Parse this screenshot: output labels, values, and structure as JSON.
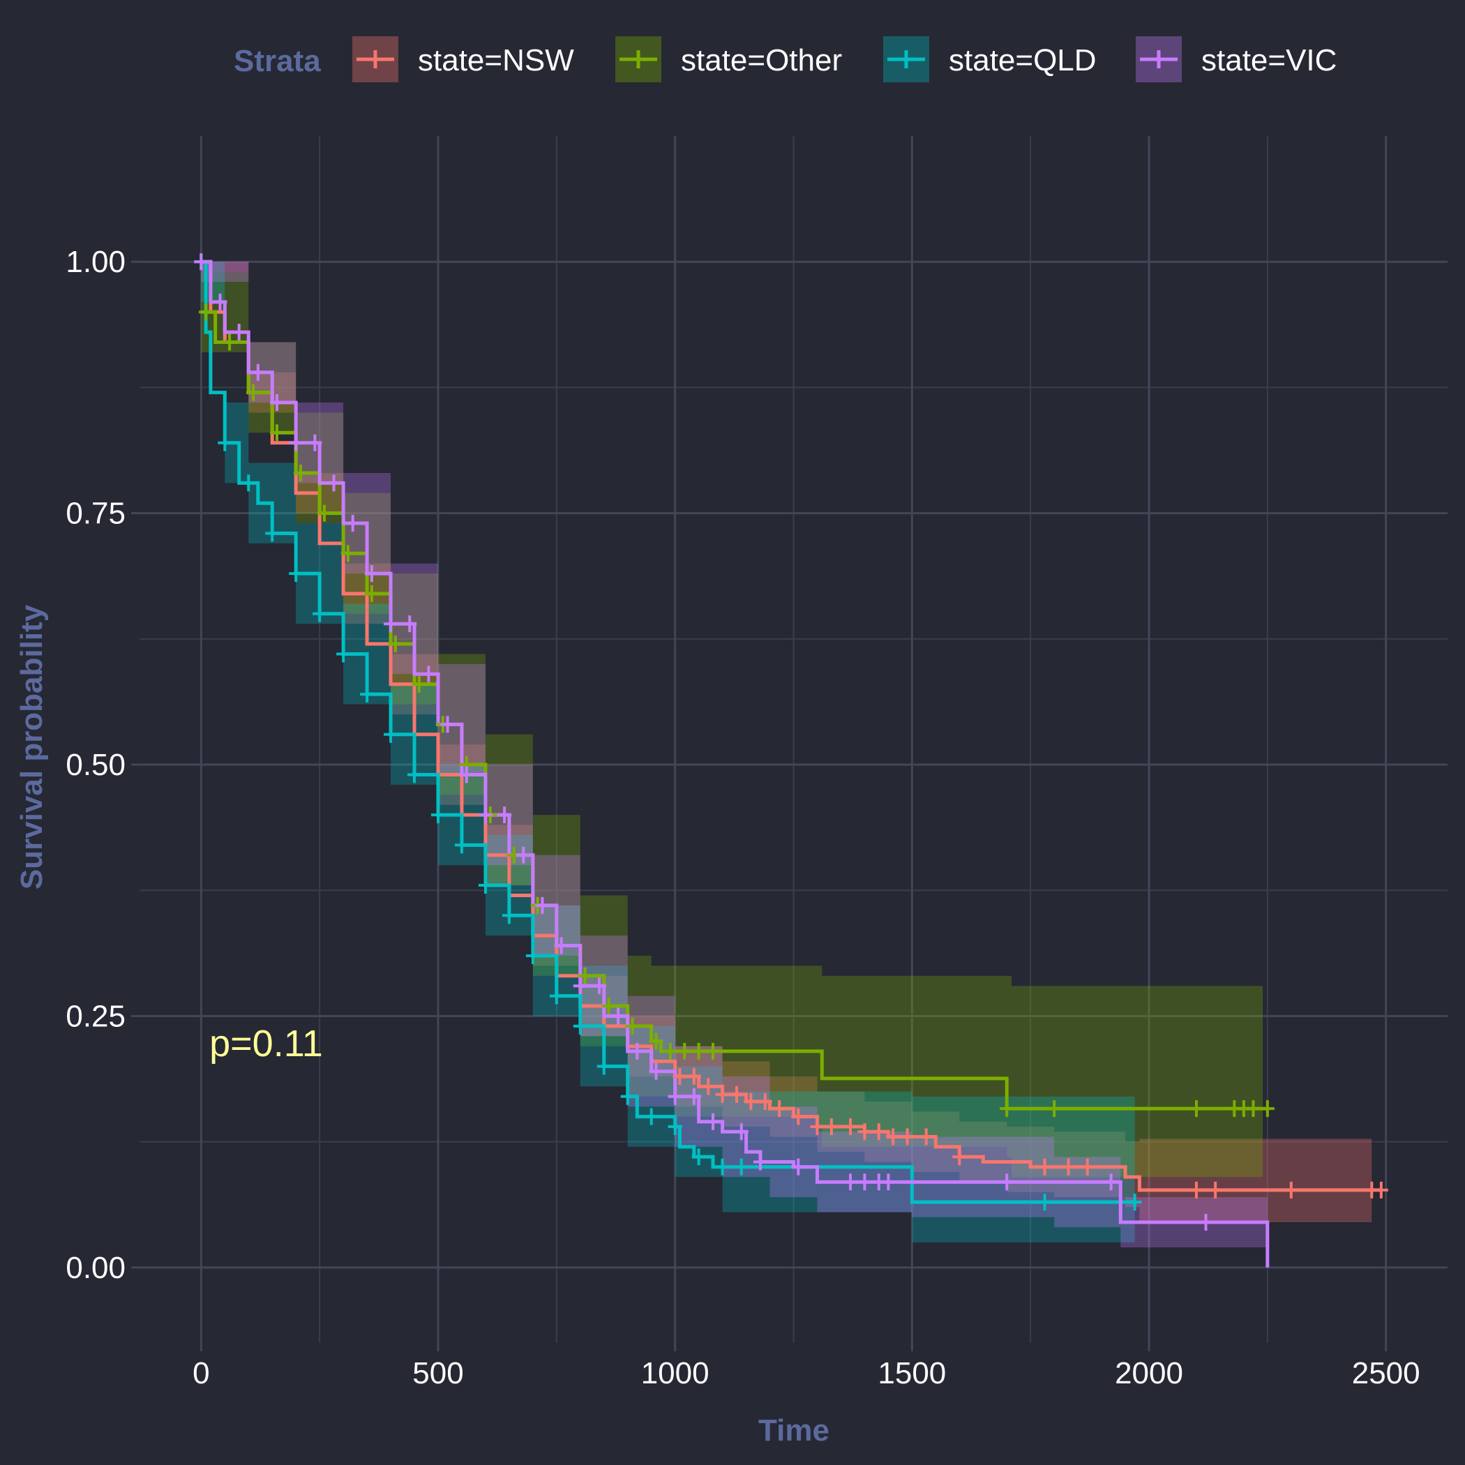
{
  "chart_data": {
    "type": "line",
    "subtype": "kaplan-meier",
    "xlabel": "Time",
    "ylabel": "Survival probability",
    "xlim": [
      -130,
      2630
    ],
    "ylim": [
      -0.075,
      1.125
    ],
    "x_ticks": [
      0,
      500,
      1000,
      1500,
      2000,
      2500
    ],
    "x_tick_labels": [
      "0",
      "500",
      "1000",
      "1500",
      "2000",
      "2500"
    ],
    "y_ticks": [
      0,
      0.25,
      0.5,
      0.75,
      1.0
    ],
    "y_tick_labels": [
      "0.00",
      "0.25",
      "0.50",
      "0.75",
      "1.00"
    ],
    "grid": true,
    "legend_title": "Strata",
    "legend_position": "top",
    "annotation": {
      "text": "p=0.11",
      "x": 10,
      "y": 0.21,
      "color": "#ffff99"
    },
    "series": [
      {
        "name": "state=NSW",
        "color": "#f8766d",
        "points": [
          [
            0,
            1.0
          ],
          [
            20,
            0.95
          ],
          [
            50,
            0.92
          ],
          [
            100,
            0.87
          ],
          [
            150,
            0.82
          ],
          [
            200,
            0.77
          ],
          [
            250,
            0.72
          ],
          [
            300,
            0.67
          ],
          [
            350,
            0.62
          ],
          [
            400,
            0.58
          ],
          [
            450,
            0.53
          ],
          [
            500,
            0.49
          ],
          [
            550,
            0.45
          ],
          [
            600,
            0.41
          ],
          [
            650,
            0.37
          ],
          [
            700,
            0.33
          ],
          [
            750,
            0.29
          ],
          [
            800,
            0.26
          ],
          [
            850,
            0.24
          ],
          [
            900,
            0.22
          ],
          [
            950,
            0.205
          ],
          [
            1000,
            0.19
          ],
          [
            1050,
            0.18
          ],
          [
            1100,
            0.172
          ],
          [
            1150,
            0.165
          ],
          [
            1200,
            0.158
          ],
          [
            1250,
            0.15
          ],
          [
            1300,
            0.14
          ],
          [
            1400,
            0.135
          ],
          [
            1450,
            0.13
          ],
          [
            1550,
            0.12
          ],
          [
            1600,
            0.11
          ],
          [
            1650,
            0.105
          ],
          [
            1750,
            0.1
          ],
          [
            1950,
            0.09
          ],
          [
            1980,
            0.077
          ],
          [
            2490,
            0.077
          ]
        ],
        "ci_lower": [
          [
            0,
            0.99
          ],
          [
            100,
            0.85
          ],
          [
            200,
            0.75
          ],
          [
            300,
            0.64
          ],
          [
            400,
            0.55
          ],
          [
            500,
            0.46
          ],
          [
            600,
            0.38
          ],
          [
            700,
            0.3
          ],
          [
            800,
            0.23
          ],
          [
            900,
            0.19
          ],
          [
            1000,
            0.16
          ],
          [
            1100,
            0.14
          ],
          [
            1200,
            0.13
          ],
          [
            1300,
            0.115
          ],
          [
            1400,
            0.105
          ],
          [
            1500,
            0.095
          ],
          [
            1600,
            0.085
          ],
          [
            1700,
            0.075
          ],
          [
            1800,
            0.07
          ],
          [
            1950,
            0.06
          ],
          [
            1980,
            0.045
          ],
          [
            2470,
            0.045
          ]
        ],
        "ci_upper": [
          [
            0,
            1.0
          ],
          [
            100,
            0.89
          ],
          [
            200,
            0.79
          ],
          [
            300,
            0.7
          ],
          [
            400,
            0.61
          ],
          [
            500,
            0.52
          ],
          [
            600,
            0.44
          ],
          [
            700,
            0.36
          ],
          [
            800,
            0.29
          ],
          [
            900,
            0.25
          ],
          [
            1000,
            0.22
          ],
          [
            1100,
            0.205
          ],
          [
            1200,
            0.19
          ],
          [
            1300,
            0.175
          ],
          [
            1400,
            0.165
          ],
          [
            1500,
            0.155
          ],
          [
            1600,
            0.145
          ],
          [
            1700,
            0.14
          ],
          [
            1800,
            0.135
          ],
          [
            1950,
            0.125
          ],
          [
            1980,
            0.128
          ],
          [
            2470,
            0.128
          ]
        ],
        "censor": [
          1010,
          1040,
          1070,
          1100,
          1130,
          1160,
          1190,
          1220,
          1260,
          1300,
          1330,
          1370,
          1400,
          1430,
          1460,
          1490,
          1530,
          1600,
          1780,
          1830,
          1870,
          2100,
          2140,
          2300,
          2470,
          2490
        ]
      },
      {
        "name": "state=Other",
        "color": "#7cae00",
        "points": [
          [
            0,
            0.95
          ],
          [
            30,
            0.92
          ],
          [
            100,
            0.87
          ],
          [
            150,
            0.83
          ],
          [
            200,
            0.79
          ],
          [
            250,
            0.75
          ],
          [
            300,
            0.71
          ],
          [
            350,
            0.67
          ],
          [
            400,
            0.62
          ],
          [
            450,
            0.58
          ],
          [
            500,
            0.54
          ],
          [
            550,
            0.5
          ],
          [
            600,
            0.45
          ],
          [
            650,
            0.41
          ],
          [
            700,
            0.36
          ],
          [
            750,
            0.32
          ],
          [
            800,
            0.29
          ],
          [
            850,
            0.26
          ],
          [
            900,
            0.24
          ],
          [
            950,
            0.225
          ],
          [
            970,
            0.215
          ],
          [
            1310,
            0.215
          ],
          [
            1310,
            0.188
          ],
          [
            1700,
            0.188
          ],
          [
            1700,
            0.158
          ],
          [
            2250,
            0.158
          ]
        ],
        "ci_lower": [
          [
            0,
            0.91
          ],
          [
            100,
            0.83
          ],
          [
            200,
            0.74
          ],
          [
            300,
            0.65
          ],
          [
            400,
            0.56
          ],
          [
            500,
            0.47
          ],
          [
            600,
            0.38
          ],
          [
            700,
            0.29
          ],
          [
            800,
            0.22
          ],
          [
            900,
            0.17
          ],
          [
            1000,
            0.15
          ],
          [
            1300,
            0.14
          ],
          [
            1310,
            0.12
          ],
          [
            1700,
            0.11
          ],
          [
            1710,
            0.09
          ],
          [
            2240,
            0.09
          ]
        ],
        "ci_upper": [
          [
            0,
            0.99
          ],
          [
            100,
            0.92
          ],
          [
            200,
            0.85
          ],
          [
            300,
            0.77
          ],
          [
            400,
            0.69
          ],
          [
            500,
            0.61
          ],
          [
            600,
            0.53
          ],
          [
            700,
            0.45
          ],
          [
            800,
            0.37
          ],
          [
            900,
            0.31
          ],
          [
            950,
            0.3
          ],
          [
            1310,
            0.3
          ],
          [
            1310,
            0.29
          ],
          [
            1700,
            0.29
          ],
          [
            1710,
            0.28
          ],
          [
            2240,
            0.28
          ]
        ],
        "censor": [
          10,
          60,
          110,
          160,
          210,
          260,
          310,
          360,
          410,
          460,
          510,
          560,
          610,
          660,
          710,
          760,
          810,
          860,
          910,
          960,
          990,
          1020,
          1050,
          1080,
          1700,
          1800,
          2100,
          2180,
          2200,
          2220,
          2250
        ]
      },
      {
        "name": "state=QLD",
        "color": "#00bfc4",
        "points": [
          [
            0,
            1.0
          ],
          [
            10,
            0.93
          ],
          [
            20,
            0.87
          ],
          [
            50,
            0.82
          ],
          [
            80,
            0.78
          ],
          [
            120,
            0.76
          ],
          [
            150,
            0.73
          ],
          [
            200,
            0.69
          ],
          [
            250,
            0.65
          ],
          [
            300,
            0.61
          ],
          [
            350,
            0.57
          ],
          [
            400,
            0.53
          ],
          [
            450,
            0.49
          ],
          [
            500,
            0.45
          ],
          [
            550,
            0.42
          ],
          [
            600,
            0.38
          ],
          [
            650,
            0.35
          ],
          [
            700,
            0.31
          ],
          [
            750,
            0.27
          ],
          [
            800,
            0.24
          ],
          [
            850,
            0.2
          ],
          [
            900,
            0.17
          ],
          [
            920,
            0.15
          ],
          [
            1000,
            0.14
          ],
          [
            1010,
            0.12
          ],
          [
            1040,
            0.11
          ],
          [
            1080,
            0.1
          ],
          [
            1500,
            0.1
          ],
          [
            1500,
            0.065
          ],
          [
            1970,
            0.065
          ]
        ],
        "ci_lower": [
          [
            0,
            0.96
          ],
          [
            50,
            0.78
          ],
          [
            100,
            0.72
          ],
          [
            200,
            0.64
          ],
          [
            300,
            0.56
          ],
          [
            400,
            0.48
          ],
          [
            500,
            0.4
          ],
          [
            600,
            0.33
          ],
          [
            700,
            0.25
          ],
          [
            800,
            0.18
          ],
          [
            900,
            0.12
          ],
          [
            1000,
            0.09
          ],
          [
            1100,
            0.055
          ],
          [
            1500,
            0.05
          ],
          [
            1500,
            0.025
          ],
          [
            1970,
            0.025
          ]
        ],
        "ci_upper": [
          [
            0,
            1.0
          ],
          [
            50,
            0.86
          ],
          [
            100,
            0.8
          ],
          [
            200,
            0.74
          ],
          [
            300,
            0.66
          ],
          [
            400,
            0.58
          ],
          [
            500,
            0.5
          ],
          [
            600,
            0.43
          ],
          [
            700,
            0.36
          ],
          [
            800,
            0.3
          ],
          [
            900,
            0.24
          ],
          [
            1000,
            0.2
          ],
          [
            1100,
            0.175
          ],
          [
            1500,
            0.175
          ],
          [
            1500,
            0.17
          ],
          [
            1970,
            0.17
          ]
        ],
        "censor": [
          0,
          50,
          100,
          150,
          200,
          250,
          300,
          350,
          400,
          450,
          500,
          550,
          600,
          650,
          700,
          750,
          800,
          850,
          900,
          950,
          1000,
          1050,
          1100,
          1140,
          1780,
          1970
        ]
      },
      {
        "name": "state=VIC",
        "color": "#c77cff",
        "points": [
          [
            0,
            1.0
          ],
          [
            20,
            0.96
          ],
          [
            50,
            0.93
          ],
          [
            100,
            0.89
          ],
          [
            150,
            0.86
          ],
          [
            200,
            0.82
          ],
          [
            250,
            0.78
          ],
          [
            300,
            0.74
          ],
          [
            350,
            0.69
          ],
          [
            400,
            0.64
          ],
          [
            450,
            0.59
          ],
          [
            500,
            0.54
          ],
          [
            550,
            0.49
          ],
          [
            600,
            0.45
          ],
          [
            650,
            0.41
          ],
          [
            700,
            0.36
          ],
          [
            750,
            0.32
          ],
          [
            800,
            0.28
          ],
          [
            850,
            0.25
          ],
          [
            900,
            0.215
          ],
          [
            950,
            0.195
          ],
          [
            1000,
            0.17
          ],
          [
            1050,
            0.145
          ],
          [
            1100,
            0.135
          ],
          [
            1150,
            0.115
          ],
          [
            1180,
            0.105
          ],
          [
            1250,
            0.1
          ],
          [
            1300,
            0.085
          ],
          [
            1720,
            0.085
          ],
          [
            1940,
            0.065
          ],
          [
            1940,
            0.045
          ],
          [
            2250,
            0.045
          ],
          [
            2250,
            0.0
          ]
        ],
        "ci_lower": [
          [
            0,
            0.98
          ],
          [
            100,
            0.86
          ],
          [
            200,
            0.78
          ],
          [
            300,
            0.69
          ],
          [
            400,
            0.59
          ],
          [
            500,
            0.49
          ],
          [
            600,
            0.4
          ],
          [
            700,
            0.31
          ],
          [
            800,
            0.23
          ],
          [
            900,
            0.16
          ],
          [
            1000,
            0.12
          ],
          [
            1100,
            0.09
          ],
          [
            1200,
            0.07
          ],
          [
            1300,
            0.055
          ],
          [
            1500,
            0.05
          ],
          [
            1800,
            0.04
          ],
          [
            1940,
            0.03
          ],
          [
            1940,
            0.02
          ],
          [
            2250,
            0.02
          ]
        ],
        "ci_upper": [
          [
            0,
            1.0
          ],
          [
            100,
            0.92
          ],
          [
            200,
            0.86
          ],
          [
            300,
            0.79
          ],
          [
            400,
            0.7
          ],
          [
            500,
            0.6
          ],
          [
            600,
            0.5
          ],
          [
            700,
            0.41
          ],
          [
            800,
            0.33
          ],
          [
            900,
            0.27
          ],
          [
            1000,
            0.22
          ],
          [
            1100,
            0.19
          ],
          [
            1200,
            0.16
          ],
          [
            1300,
            0.135
          ],
          [
            1500,
            0.13
          ],
          [
            1800,
            0.11
          ],
          [
            1940,
            0.1
          ],
          [
            1940,
            0.07
          ],
          [
            2250,
            0.07
          ]
        ],
        "censor": [
          0,
          40,
          80,
          120,
          160,
          200,
          240,
          280,
          320,
          360,
          400,
          440,
          480,
          520,
          560,
          600,
          640,
          680,
          720,
          760,
          800,
          840,
          880,
          920,
          960,
          1000,
          1040,
          1080,
          1140,
          1180,
          1260,
          1370,
          1400,
          1430,
          1450,
          1700,
          1920,
          2120
        ]
      }
    ]
  }
}
